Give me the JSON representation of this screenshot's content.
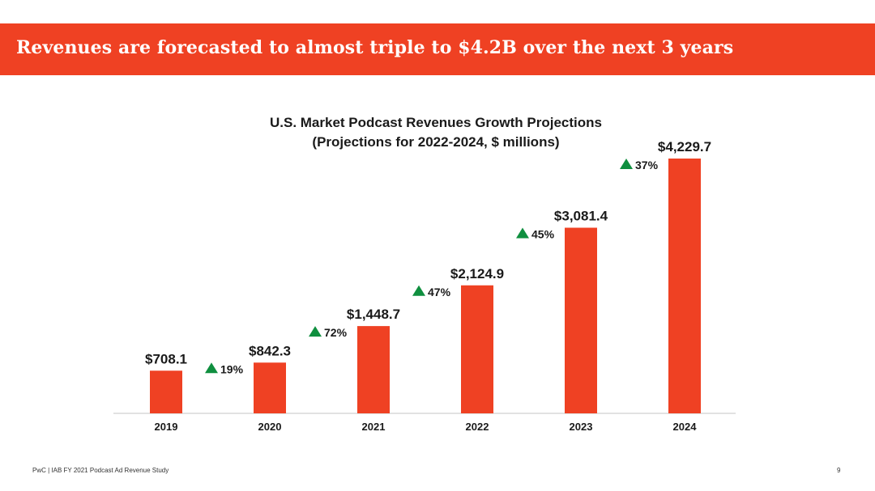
{
  "header": {
    "title": "Revenues are forecasted to almost triple to $4.2B over the next 3 years"
  },
  "footer": {
    "source": "PwC  |  IAB FY 2021 Podcast Ad Revenue Study",
    "page_number": "9"
  },
  "colors": {
    "accent": "#ef4123",
    "growth": "#0f8f3f",
    "text": "#1a1a1a"
  },
  "chart_data": {
    "type": "bar",
    "title": "U.S. Market Podcast Revenues Growth Projections",
    "subtitle": "(Projections for 2022-2024, $ millions)",
    "categories": [
      "2019",
      "2020",
      "2021",
      "2022",
      "2023",
      "2024"
    ],
    "values": [
      708.1,
      842.3,
      1448.7,
      2124.9,
      3081.4,
      4229.7
    ],
    "value_labels": [
      "$708.1",
      "$842.3",
      "$1,448.7",
      "$2,124.9",
      "$3,081.4",
      "$4,229.7"
    ],
    "growth_labels": [
      "19%",
      "72%",
      "47%",
      "45%",
      "37%"
    ],
    "growth_marker": "up-triangle-icon",
    "xlabel": "",
    "ylabel": "",
    "ylim": [
      0,
      4229.7
    ],
    "grid": false,
    "legend": "none"
  }
}
